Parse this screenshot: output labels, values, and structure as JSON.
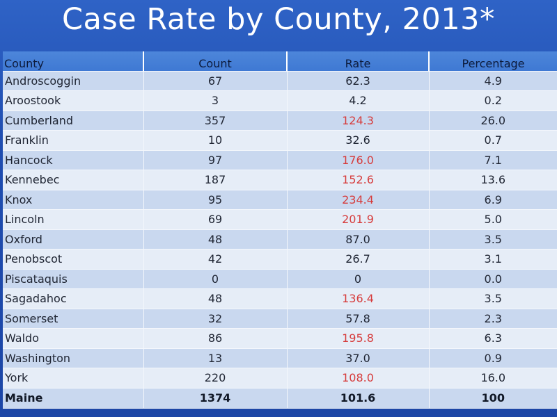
{
  "title": "Case Rate by County, 2013*",
  "colors": {
    "background": "#1f4db0",
    "header": "#4d86da",
    "row_odd": "#c9d8ef",
    "row_even": "#e6edf7",
    "highlight": "#d63b3b"
  },
  "table": {
    "headers": [
      "County",
      "Count",
      "Rate",
      "Percentage"
    ],
    "rows": [
      {
        "county": "Androscoggin",
        "count": "67",
        "rate": "62.3",
        "rate_highlight": false,
        "percentage": "4.9"
      },
      {
        "county": "Aroostook",
        "count": "3",
        "rate": "4.2",
        "rate_highlight": false,
        "percentage": "0.2"
      },
      {
        "county": "Cumberland",
        "count": "357",
        "rate": "124.3",
        "rate_highlight": true,
        "percentage": "26.0"
      },
      {
        "county": "Franklin",
        "count": "10",
        "rate": "32.6",
        "rate_highlight": false,
        "percentage": "0.7"
      },
      {
        "county": "Hancock",
        "count": "97",
        "rate": "176.0",
        "rate_highlight": true,
        "percentage": "7.1"
      },
      {
        "county": "Kennebec",
        "count": "187",
        "rate": "152.6",
        "rate_highlight": true,
        "percentage": "13.6"
      },
      {
        "county": "Knox",
        "count": "95",
        "rate": "234.4",
        "rate_highlight": true,
        "percentage": "6.9"
      },
      {
        "county": "Lincoln",
        "count": "69",
        "rate": "201.9",
        "rate_highlight": true,
        "percentage": "5.0"
      },
      {
        "county": "Oxford",
        "count": "48",
        "rate": "87.0",
        "rate_highlight": false,
        "percentage": "3.5"
      },
      {
        "county": "Penobscot",
        "count": "42",
        "rate": "26.7",
        "rate_highlight": false,
        "percentage": "3.1"
      },
      {
        "county": "Piscataquis",
        "count": "0",
        "rate": "0",
        "rate_highlight": false,
        "percentage": "0.0"
      },
      {
        "county": "Sagadahoc",
        "count": "48",
        "rate": "136.4",
        "rate_highlight": true,
        "percentage": "3.5"
      },
      {
        "county": "Somerset",
        "count": "32",
        "rate": "57.8",
        "rate_highlight": false,
        "percentage": "2.3"
      },
      {
        "county": "Waldo",
        "count": "86",
        "rate": "195.8",
        "rate_highlight": true,
        "percentage": "6.3"
      },
      {
        "county": "Washington",
        "count": "13",
        "rate": "37.0",
        "rate_highlight": false,
        "percentage": "0.9"
      },
      {
        "county": "York",
        "count": "220",
        "rate": "108.0",
        "rate_highlight": true,
        "percentage": "16.0"
      }
    ],
    "total": {
      "county": "Maine",
      "count": "1374",
      "rate": "101.6",
      "percentage": "100"
    }
  }
}
